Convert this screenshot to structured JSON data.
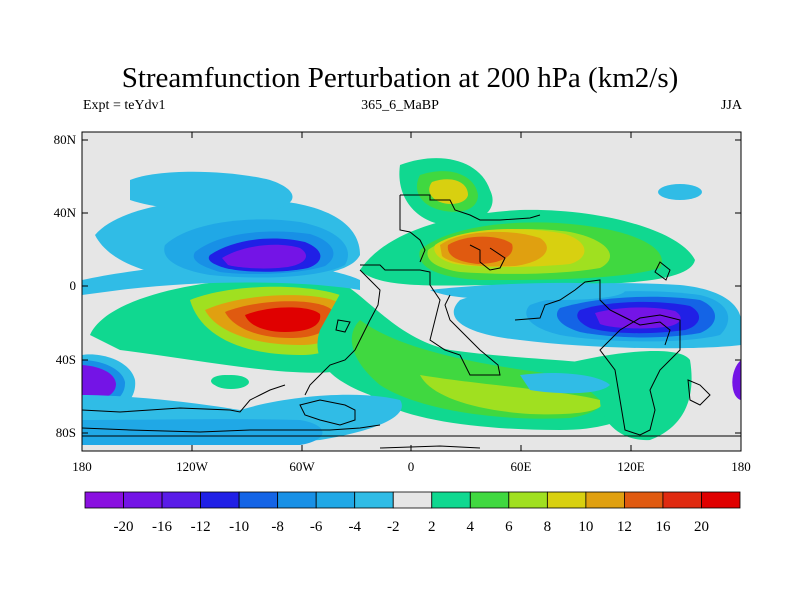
{
  "title": "Streamfunction Perturbation at 200 hPa (km2/s)",
  "subtitle_left": "Expt = teYdv1",
  "subtitle_center": "365_6_MaBP",
  "subtitle_right": "JJA",
  "lat_labels": [
    "80N",
    "40N",
    "0",
    "40S",
    "80S"
  ],
  "lon_labels": [
    "180",
    "120W",
    "60W",
    "0",
    "60E",
    "120E",
    "180"
  ],
  "colorbar": {
    "labels": [
      "-20",
      "-16",
      "-12",
      "-10",
      "-8",
      "-6",
      "-4",
      "-2",
      "2",
      "4",
      "6",
      "8",
      "10",
      "12",
      "16",
      "20"
    ],
    "colors": [
      "#8a10e0",
      "#7414e6",
      "#5a1ce8",
      "#2020e6",
      "#1464e6",
      "#1890e6",
      "#20a8e6",
      "#30bce6",
      "#e6e6e6",
      "#10d890",
      "#40d840",
      "#a0e020",
      "#d8d010",
      "#e0a010",
      "#e05a10",
      "#e02a10",
      "#e00000"
    ]
  }
}
